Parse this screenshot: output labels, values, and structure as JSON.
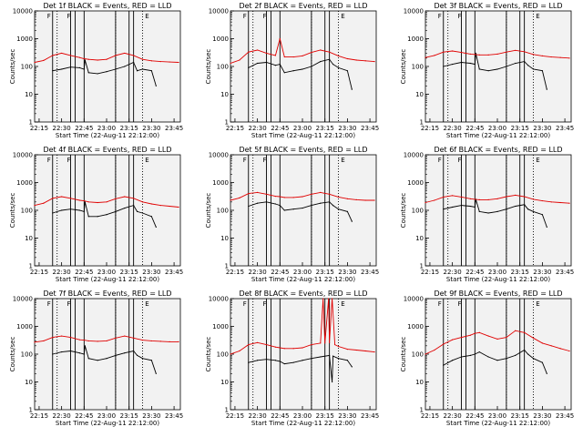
{
  "chart_data": [
    {
      "type": "line",
      "title": "Det 1f BLACK = Events, RED = LLD",
      "xlabel": "Start Time (22-Aug-11 22:12:00)",
      "ylabel": "Counts/sec",
      "y_scale": "log",
      "ylim": [
        1,
        10000
      ],
      "xlim": [
        22.2,
        23.82
      ],
      "x_ticks": [
        "22:15",
        "22:30",
        "22:45",
        "23:00",
        "23:15",
        "23:30",
        "23:45"
      ],
      "y_ticks": [
        "1",
        "10",
        "100",
        "1000",
        "10000"
      ],
      "markers": [
        "F",
        "F",
        "E"
      ],
      "series": [
        {
          "name": "Events",
          "color": "#000000",
          "x": [
            22.4,
            22.5,
            22.6,
            22.7,
            22.75,
            22.76,
            22.8,
            22.9,
            23.0,
            23.1,
            23.2,
            23.3,
            23.34,
            23.4,
            23.5,
            23.55
          ],
          "values": [
            70,
            80,
            95,
            90,
            80,
            170,
            60,
            55,
            65,
            80,
            100,
            140,
            70,
            80,
            70,
            20
          ]
        },
        {
          "name": "LLD",
          "color": "#e00000",
          "x": [
            22.2,
            22.3,
            22.4,
            22.5,
            22.6,
            22.7,
            22.75,
            22.8,
            22.9,
            23.0,
            23.1,
            23.2,
            23.3,
            23.4,
            23.5,
            23.6,
            23.7,
            23.8
          ],
          "values": [
            140,
            165,
            250,
            300,
            250,
            210,
            190,
            180,
            170,
            180,
            250,
            300,
            250,
            180,
            160,
            150,
            145,
            140
          ]
        }
      ]
    },
    {
      "type": "line",
      "title": "Det 2f BLACK = Events, RED = LLD",
      "xlabel": "Start Time (22-Aug-11 22:12:00)",
      "ylabel": "Counts/sec",
      "y_scale": "log",
      "ylim": [
        1,
        10000
      ],
      "xlim": [
        22.2,
        23.82
      ],
      "x_ticks": [
        "22:15",
        "22:30",
        "22:45",
        "23:00",
        "23:15",
        "23:30",
        "23:45"
      ],
      "y_ticks": [
        "1",
        "10",
        "100",
        "1000",
        "10000"
      ],
      "markers": [
        "F",
        "F",
        "E"
      ],
      "series": [
        {
          "name": "Events",
          "color": "#000000",
          "x": [
            22.4,
            22.5,
            22.6,
            22.7,
            22.75,
            22.8,
            22.9,
            23.0,
            23.1,
            23.2,
            23.3,
            23.34,
            23.4,
            23.5,
            23.55
          ],
          "values": [
            90,
            130,
            140,
            110,
            120,
            60,
            70,
            80,
            100,
            150,
            180,
            120,
            90,
            70,
            15
          ]
        },
        {
          "name": "LLD",
          "color": "#e00000",
          "x": [
            22.2,
            22.3,
            22.4,
            22.5,
            22.6,
            22.7,
            22.75,
            22.8,
            22.9,
            23.0,
            23.1,
            23.2,
            23.3,
            23.4,
            23.5,
            23.6,
            23.7,
            23.8
          ],
          "values": [
            130,
            170,
            330,
            390,
            300,
            250,
            1000,
            220,
            220,
            240,
            320,
            390,
            330,
            240,
            190,
            170,
            160,
            150
          ]
        }
      ]
    },
    {
      "type": "line",
      "title": "Det 3f BLACK = Events, RED = LLD",
      "xlabel": "Start Time (22-Aug-11 22:12:00)",
      "ylabel": "Counts/sec",
      "y_scale": "log",
      "ylim": [
        1,
        10000
      ],
      "xlim": [
        22.2,
        23.82
      ],
      "x_ticks": [
        "22:15",
        "22:30",
        "22:45",
        "23:00",
        "23:15",
        "23:30",
        "23:45"
      ],
      "y_ticks": [
        "1",
        "10",
        "100",
        "1000",
        "10000"
      ],
      "markers": [
        "F",
        "F",
        "E"
      ],
      "series": [
        {
          "name": "Events",
          "color": "#000000",
          "x": [
            22.4,
            22.5,
            22.6,
            22.7,
            22.75,
            22.76,
            22.8,
            22.9,
            23.0,
            23.1,
            23.2,
            23.3,
            23.34,
            23.4,
            23.5,
            23.55
          ],
          "values": [
            100,
            120,
            140,
            130,
            120,
            300,
            80,
            70,
            80,
            100,
            130,
            150,
            110,
            80,
            70,
            15
          ]
        },
        {
          "name": "LLD",
          "color": "#e00000",
          "x": [
            22.2,
            22.3,
            22.4,
            22.5,
            22.6,
            22.7,
            22.75,
            22.8,
            22.9,
            23.0,
            23.1,
            23.2,
            23.3,
            23.4,
            23.5,
            23.6,
            23.7,
            23.8
          ],
          "values": [
            210,
            250,
            330,
            360,
            320,
            280,
            270,
            260,
            260,
            280,
            330,
            380,
            340,
            270,
            240,
            220,
            210,
            200
          ]
        }
      ]
    },
    {
      "type": "line",
      "title": "Det 4f BLACK = Events, RED = LLD",
      "xlabel": "Start Time (22-Aug-11 22:12:00)",
      "ylabel": "Counts/sec",
      "y_scale": "log",
      "ylim": [
        1,
        10000
      ],
      "xlim": [
        22.2,
        23.82
      ],
      "x_ticks": [
        "22:15",
        "22:30",
        "22:45",
        "23:00",
        "23:15",
        "23:30",
        "23:45"
      ],
      "y_ticks": [
        "1",
        "10",
        "100",
        "1000",
        "10000"
      ],
      "markers": [
        "F",
        "F",
        "E"
      ],
      "series": [
        {
          "name": "Events",
          "color": "#000000",
          "x": [
            22.4,
            22.5,
            22.6,
            22.7,
            22.75,
            22.76,
            22.8,
            22.9,
            23.0,
            23.1,
            23.2,
            23.3,
            23.34,
            23.4,
            23.5,
            23.55
          ],
          "values": [
            80,
            100,
            110,
            100,
            90,
            200,
            60,
            60,
            70,
            90,
            120,
            150,
            90,
            80,
            60,
            25
          ]
        },
        {
          "name": "LLD",
          "color": "#e00000",
          "x": [
            22.2,
            22.3,
            22.4,
            22.5,
            22.6,
            22.7,
            22.75,
            22.8,
            22.9,
            23.0,
            23.1,
            23.2,
            23.3,
            23.4,
            23.5,
            23.6,
            23.7,
            23.8
          ],
          "values": [
            150,
            180,
            270,
            310,
            270,
            230,
            220,
            200,
            190,
            200,
            260,
            310,
            270,
            200,
            170,
            150,
            140,
            130
          ]
        }
      ]
    },
    {
      "type": "line",
      "title": "Det 5f BLACK = Events, RED = LLD",
      "xlabel": "Start Time (22-Aug-11 22:12:00)",
      "ylabel": "Counts/sec",
      "y_scale": "log",
      "ylim": [
        1,
        10000
      ],
      "xlim": [
        22.2,
        23.82
      ],
      "x_ticks": [
        "22:15",
        "22:30",
        "22:45",
        "23:00",
        "23:15",
        "23:30",
        "23:45"
      ],
      "y_ticks": [
        "1",
        "10",
        "100",
        "1000",
        "10000"
      ],
      "markers": [
        "F",
        "F",
        "E"
      ],
      "series": [
        {
          "name": "Events",
          "color": "#000000",
          "x": [
            22.4,
            22.5,
            22.6,
            22.7,
            22.75,
            22.8,
            22.9,
            23.0,
            23.1,
            23.2,
            23.3,
            23.34,
            23.4,
            23.5,
            23.55
          ],
          "values": [
            140,
            180,
            200,
            170,
            150,
            100,
            110,
            120,
            150,
            180,
            200,
            150,
            110,
            90,
            40
          ]
        },
        {
          "name": "LLD",
          "color": "#e00000",
          "x": [
            22.2,
            22.3,
            22.4,
            22.5,
            22.6,
            22.7,
            22.75,
            22.8,
            22.9,
            23.0,
            23.1,
            23.2,
            23.3,
            23.4,
            23.5,
            23.6,
            23.7,
            23.8
          ],
          "values": [
            230,
            280,
            400,
            440,
            380,
            320,
            310,
            290,
            290,
            310,
            380,
            440,
            380,
            300,
            260,
            240,
            230,
            230
          ]
        }
      ]
    },
    {
      "type": "line",
      "title": "Det 6f BLACK = Events, RED = LLD",
      "xlabel": "Start Time (22-Aug-11 22:12:00)",
      "ylabel": "Counts/sec",
      "y_scale": "log",
      "ylim": [
        1,
        10000
      ],
      "xlim": [
        22.2,
        23.82
      ],
      "x_ticks": [
        "22:15",
        "22:30",
        "22:45",
        "23:00",
        "23:15",
        "23:30",
        "23:45"
      ],
      "y_ticks": [
        "1",
        "10",
        "100",
        "1000",
        "10000"
      ],
      "markers": [
        "F",
        "F",
        "E"
      ],
      "series": [
        {
          "name": "Events",
          "color": "#000000",
          "x": [
            22.4,
            22.5,
            22.6,
            22.7,
            22.75,
            22.76,
            22.8,
            22.9,
            23.0,
            23.1,
            23.2,
            23.3,
            23.34,
            23.4,
            23.5,
            23.55
          ],
          "values": [
            110,
            130,
            150,
            140,
            130,
            250,
            90,
            80,
            90,
            110,
            140,
            160,
            110,
            90,
            70,
            25
          ]
        },
        {
          "name": "LLD",
          "color": "#e00000",
          "x": [
            22.2,
            22.3,
            22.4,
            22.5,
            22.6,
            22.7,
            22.75,
            22.8,
            22.9,
            23.0,
            23.1,
            23.2,
            23.3,
            23.4,
            23.5,
            23.6,
            23.7,
            23.8
          ],
          "values": [
            190,
            230,
            300,
            340,
            300,
            260,
            250,
            240,
            240,
            260,
            310,
            350,
            310,
            250,
            220,
            200,
            190,
            180
          ]
        }
      ]
    },
    {
      "type": "line",
      "title": "Det 7f BLACK = Events, RED = LLD",
      "xlabel": "Start Time (22-Aug-11 22:12:00)",
      "ylabel": "Counts/sec",
      "y_scale": "log",
      "ylim": [
        1,
        10000
      ],
      "xlim": [
        22.2,
        23.82
      ],
      "x_ticks": [
        "22:15",
        "22:30",
        "22:45",
        "23:00",
        "23:15",
        "23:30",
        "23:45"
      ],
      "y_ticks": [
        "1",
        "10",
        "100",
        "1000",
        "10000"
      ],
      "markers": [
        "F",
        "F",
        "E"
      ],
      "series": [
        {
          "name": "Events",
          "color": "#000000",
          "x": [
            22.4,
            22.5,
            22.6,
            22.7,
            22.75,
            22.76,
            22.8,
            22.9,
            23.0,
            23.1,
            23.2,
            23.3,
            23.34,
            23.4,
            23.5,
            23.55
          ],
          "values": [
            100,
            120,
            130,
            110,
            100,
            200,
            70,
            60,
            70,
            90,
            110,
            130,
            90,
            70,
            60,
            20
          ]
        },
        {
          "name": "LLD",
          "color": "#e00000",
          "x": [
            22.2,
            22.3,
            22.4,
            22.5,
            22.6,
            22.7,
            22.75,
            22.8,
            22.9,
            23.0,
            23.1,
            23.2,
            23.3,
            23.4,
            23.5,
            23.6,
            23.7,
            23.8
          ],
          "values": [
            270,
            300,
            400,
            450,
            400,
            330,
            320,
            300,
            290,
            300,
            380,
            450,
            380,
            320,
            300,
            290,
            280,
            280
          ]
        }
      ]
    },
    {
      "type": "line",
      "title": "Det 8f BLACK = Events, RED = LLD",
      "xlabel": "Start Time (22-Aug-11 22:12:00)",
      "ylabel": "Counts/sec",
      "y_scale": "log",
      "ylim": [
        1,
        10000
      ],
      "xlim": [
        22.2,
        23.82
      ],
      "x_ticks": [
        "22:15",
        "22:30",
        "22:45",
        "23:00",
        "23:15",
        "23:30",
        "23:45"
      ],
      "y_ticks": [
        "1",
        "10",
        "100",
        "1000",
        "10000"
      ],
      "markers": [
        "F",
        "F",
        "E"
      ],
      "series": [
        {
          "name": "Events",
          "color": "#000000",
          "x": [
            22.4,
            22.5,
            22.6,
            22.7,
            22.75,
            22.8,
            22.9,
            23.0,
            23.1,
            23.2,
            23.3,
            23.33,
            23.34,
            23.4,
            23.5,
            23.55
          ],
          "values": [
            50,
            60,
            65,
            60,
            55,
            45,
            50,
            60,
            70,
            80,
            90,
            10,
            85,
            70,
            60,
            35
          ]
        },
        {
          "name": "LLD",
          "color": "#e00000",
          "x": [
            22.2,
            22.3,
            22.4,
            22.5,
            22.6,
            22.7,
            22.75,
            22.8,
            22.9,
            23.0,
            23.1,
            23.2,
            23.23,
            23.25,
            23.29,
            23.3,
            23.33,
            23.36,
            23.4,
            23.5,
            23.6,
            23.7,
            23.8
          ],
          "values": [
            100,
            130,
            220,
            260,
            220,
            180,
            170,
            160,
            160,
            170,
            220,
            250,
            10000,
            250,
            10000,
            260,
            10000,
            220,
            190,
            150,
            140,
            130,
            120
          ]
        }
      ]
    },
    {
      "type": "line",
      "title": "Det 9f BLACK = Events, RED = LLD",
      "xlabel": "Start Time (22-Aug-11 22:12:00)",
      "ylabel": "Counts/sec",
      "y_scale": "log",
      "ylim": [
        1,
        10000
      ],
      "xlim": [
        22.2,
        23.82
      ],
      "x_ticks": [
        "22:15",
        "22:30",
        "22:45",
        "23:00",
        "23:15",
        "23:30",
        "23:45"
      ],
      "y_ticks": [
        "1",
        "10",
        "100",
        "1000",
        "10000"
      ],
      "markers": [
        "F",
        "F",
        "E"
      ],
      "series": [
        {
          "name": "Events",
          "color": "#000000",
          "x": [
            22.4,
            22.5,
            22.6,
            22.7,
            22.75,
            22.8,
            22.9,
            23.0,
            23.1,
            23.2,
            23.3,
            23.34,
            23.4,
            23.5,
            23.55
          ],
          "values": [
            40,
            60,
            80,
            90,
            100,
            120,
            80,
            60,
            70,
            90,
            140,
            100,
            70,
            50,
            20
          ]
        },
        {
          "name": "LLD",
          "color": "#e00000",
          "x": [
            22.2,
            22.3,
            22.4,
            22.5,
            22.6,
            22.7,
            22.75,
            22.8,
            22.9,
            23.0,
            23.1,
            23.2,
            23.3,
            23.4,
            23.5,
            23.6,
            23.7,
            23.8
          ],
          "values": [
            100,
            140,
            230,
            330,
            400,
            480,
            560,
            600,
            450,
            350,
            400,
            700,
            600,
            380,
            250,
            200,
            160,
            130
          ]
        }
      ]
    }
  ],
  "vertical_lines": {
    "solid": [
      22.4,
      22.6,
      22.65,
      22.75,
      23.1,
      23.25,
      23.3
    ],
    "dotted": [
      22.45,
      23.1,
      23.4
    ]
  }
}
